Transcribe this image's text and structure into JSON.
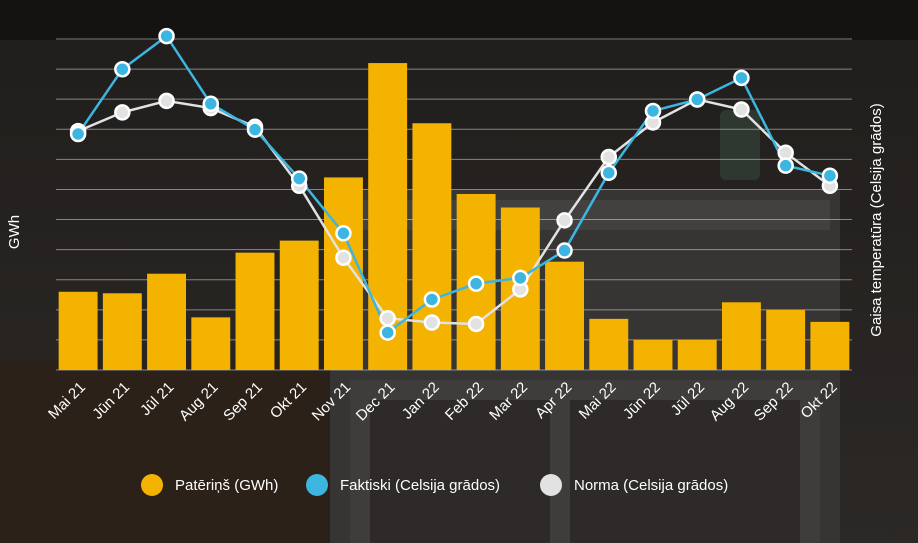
{
  "chart_data": {
    "type": "bar+line",
    "categories": [
      "Mai 21",
      "Jūn 21",
      "Jūl 21",
      "Aug 21",
      "Sep 21",
      "Okt 21",
      "Nov 21",
      "Dec 21",
      "Jan 22",
      "Feb 22",
      "Mar 22",
      "Apr 22",
      "Mai 22",
      "Jūn 22",
      "Jūl 22",
      "Aug 22",
      "Sep 22",
      "Okt 22"
    ],
    "ylabel_left": "GWh",
    "ylabel_right": "Gaisa temperatūra (Celsija grādos)",
    "ylim_left": [
      0,
      11
    ],
    "ylim_right": [
      -3,
      20
    ],
    "grid": true,
    "legend_position": "bottom",
    "series": [
      {
        "name": "Patēriņš (GWh)",
        "kind": "bar",
        "axis": "left",
        "color": "#f5b301",
        "values": [
          2.6,
          2.55,
          3.2,
          1.75,
          3.9,
          4.3,
          6.4,
          10.2,
          8.2,
          5.85,
          5.4,
          3.6,
          1.7,
          1.0,
          1.0,
          2.25,
          2.0,
          1.6
        ]
      },
      {
        "name": "Faktiski (Celsija grādos)",
        "kind": "line",
        "axis": "right",
        "color": "#3cb6e0",
        "values": [
          13.4,
          17.9,
          20.2,
          15.5,
          13.7,
          10.3,
          6.5,
          -0.4,
          1.9,
          3.0,
          3.4,
          5.3,
          10.7,
          15.0,
          15.8,
          17.3,
          11.2,
          10.5
        ]
      },
      {
        "name": "Norma (Celsija grādos)",
        "kind": "line",
        "axis": "right",
        "color": "#e2e2e2",
        "values": [
          13.6,
          14.9,
          15.7,
          15.2,
          13.9,
          9.8,
          4.8,
          0.6,
          0.3,
          0.2,
          2.6,
          7.4,
          11.8,
          14.2,
          15.8,
          15.1,
          12.1,
          9.8
        ]
      }
    ]
  }
}
